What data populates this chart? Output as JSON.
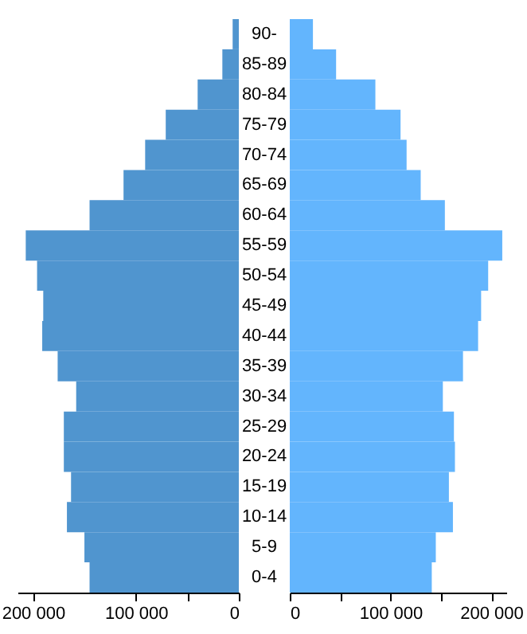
{
  "chart_data": [
    {
      "type": "bar",
      "orientation": "horizontal",
      "categories": [
        "90-",
        "85-89",
        "80-84",
        "75-79",
        "70-74",
        "65-69",
        "60-64",
        "55-59",
        "50-54",
        "45-49",
        "40-44",
        "35-39",
        "30-34",
        "25-29",
        "20-24",
        "15-19",
        "10-14",
        "5-9",
        "0-4"
      ],
      "series": [
        {
          "color": "#5095cf",
          "values": [
            6000,
            16000,
            40000,
            71000,
            91000,
            112000,
            145000,
            207000,
            196000,
            190000,
            191000,
            176000,
            158000,
            170000,
            170000,
            163000,
            167000,
            150000,
            145000
          ]
        }
      ],
      "xlim": [
        215000,
        0
      ],
      "xticks": [
        {
          "value": 200000,
          "label": "200 000"
        },
        {
          "value": 100000,
          "label": "100 000"
        },
        {
          "value": 50000,
          "label": null
        },
        0
      ]
    },
    {
      "type": "bar",
      "orientation": "horizontal",
      "tick_labels": "x",
      "categories": [
        null,
        null,
        null,
        null,
        null,
        null,
        null,
        null,
        null,
        null,
        null,
        null,
        null,
        null,
        null,
        null,
        null,
        null,
        null
      ],
      "series": [
        {
          "color": "#63b5fd",
          "values": [
            23000,
            46000,
            85000,
            110000,
            116000,
            130000,
            154000,
            211000,
            197000,
            190000,
            187000,
            172000,
            152000,
            163000,
            164000,
            158000,
            162000,
            145000,
            141000
          ]
        }
      ],
      "xlim": [
        0,
        215000
      ],
      "xticks": [
        0,
        {
          "value": 50000,
          "label": null
        },
        {
          "value": 100000,
          "label": "100 000"
        },
        {
          "value": 150000,
          "label": null
        },
        {
          "value": 200000,
          "label": "200 000"
        }
      ]
    }
  ]
}
